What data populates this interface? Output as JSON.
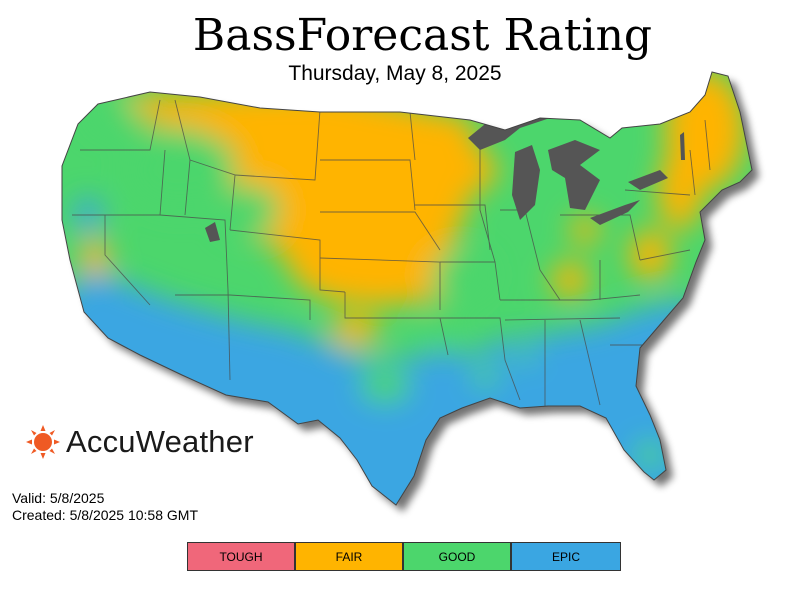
{
  "title": "BassForecast Rating",
  "subtitle": "Thursday, May 8, 2025",
  "brand": {
    "name": "AccuWeather",
    "icon": "sun-icon",
    "color": "#ef5a24"
  },
  "valid_text": "Valid: 5/8/2025",
  "created_text": "Created: 5/8/2025 10:58 GMT",
  "legend": [
    {
      "label": "TOUGH",
      "color": "#f0677a"
    },
    {
      "label": "FAIR",
      "color": "#ffb400"
    },
    {
      "label": "GOOD",
      "color": "#4cd66c"
    },
    {
      "label": "EPIC",
      "color": "#3aa6e2"
    }
  ],
  "water_color": "#555555"
}
